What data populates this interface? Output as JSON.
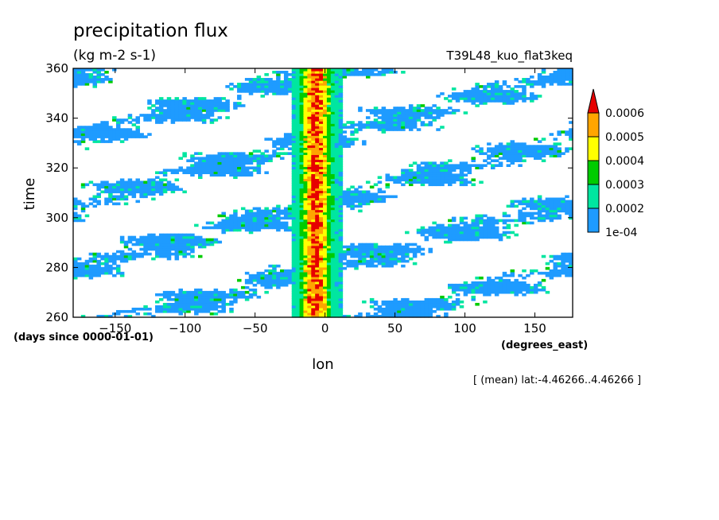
{
  "chart_data": {
    "type": "heatmap",
    "title": "precipitation flux",
    "units": "(kg m-2 s-1)",
    "experiment": "T39L48_kuo_flat3keq",
    "xlabel": "lon",
    "xunits": "(degrees_east)",
    "ylabel": "time",
    "yunits": "(days since 0000-01-01)",
    "footnote": "[ (mean) lat:-4.46266..4.46266 ]",
    "xlim": [
      -180,
      177
    ],
    "ylim": [
      260,
      360
    ],
    "xticks": [
      -150,
      -100,
      -50,
      0,
      50,
      100,
      150
    ],
    "yticks": [
      260,
      280,
      300,
      320,
      340,
      360
    ],
    "grid": false,
    "colorbar": {
      "position": "right",
      "levels": [
        "1e-04",
        "0.0002",
        "0.0003",
        "0.0004",
        "0.0005",
        "0.0006"
      ],
      "colors": [
        "#1e9bff",
        "#00e6a0",
        "#00cc00",
        "#ffff00",
        "#ffa500",
        "#e60000"
      ]
    },
    "features": [
      {
        "name": "stationary convective band",
        "lon_center": -8,
        "lon_halfwidth": 18,
        "max_value": 0.0006
      },
      {
        "name": "eastward-propagating streaks",
        "typical_value": 0.0001
      }
    ]
  }
}
